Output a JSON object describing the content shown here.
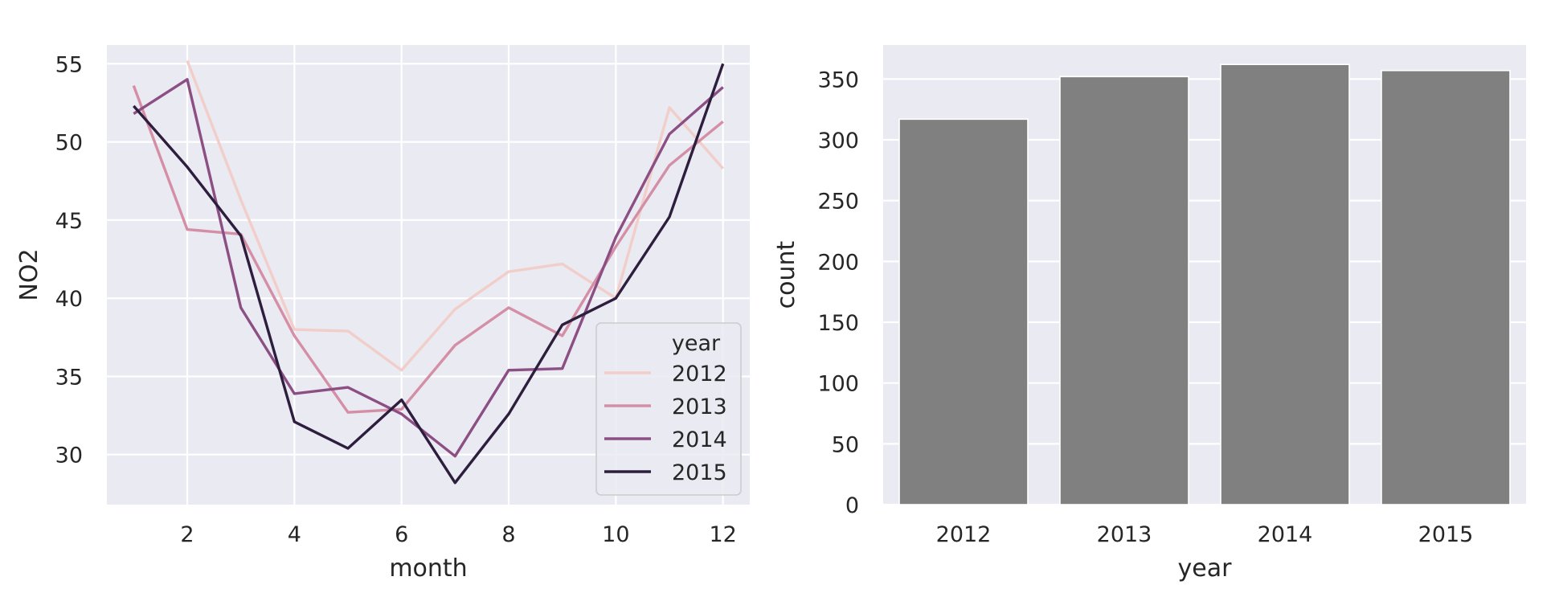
{
  "colors": {
    "plot_background": "#eaeaf2",
    "grid": "#ffffff",
    "bar": "#808080",
    "legend_background": "#eaeaf2",
    "legend_border": "#cccccc"
  },
  "chart_data": [
    {
      "type": "line",
      "xlabel": "month",
      "ylabel": "NO2",
      "xlim": [
        0.5,
        12.5
      ],
      "ylim": [
        26.8,
        56.2
      ],
      "xticks": [
        2,
        4,
        6,
        8,
        10,
        12
      ],
      "yticks": [
        30,
        35,
        40,
        45,
        50,
        55
      ],
      "grid": true,
      "legend": {
        "title": "year",
        "placement": "lower-right"
      },
      "x": [
        1,
        2,
        3,
        4,
        5,
        6,
        7,
        8,
        9,
        10,
        11,
        12
      ],
      "series": [
        {
          "name": "2012",
          "color": "#f1cec9",
          "values": [
            null,
            55.2,
            46.3,
            38.0,
            37.9,
            35.4,
            39.3,
            41.7,
            42.2,
            40.0,
            52.2,
            48.3
          ]
        },
        {
          "name": "2013",
          "color": "#d48fa6",
          "values": [
            53.6,
            44.4,
            44.1,
            37.6,
            32.7,
            32.9,
            37.0,
            39.4,
            37.6,
            43.3,
            48.5,
            51.3
          ]
        },
        {
          "name": "2014",
          "color": "#8c4f83",
          "values": [
            51.8,
            54.0,
            39.4,
            33.9,
            34.3,
            32.6,
            29.9,
            35.4,
            35.5,
            43.9,
            50.5,
            53.5
          ]
        },
        {
          "name": "2015",
          "color": "#2d1e3d",
          "values": [
            52.3,
            48.4,
            44.0,
            32.1,
            30.4,
            33.5,
            28.2,
            32.6,
            38.3,
            40.0,
            45.2,
            55.0
          ]
        }
      ]
    },
    {
      "type": "bar",
      "xlabel": "year",
      "ylabel": "count",
      "ylim": [
        0,
        378
      ],
      "yticks": [
        0,
        50,
        100,
        150,
        200,
        250,
        300,
        350
      ],
      "grid": true,
      "categories": [
        "2012",
        "2013",
        "2014",
        "2015"
      ],
      "values": [
        317,
        352,
        362,
        357
      ]
    }
  ]
}
